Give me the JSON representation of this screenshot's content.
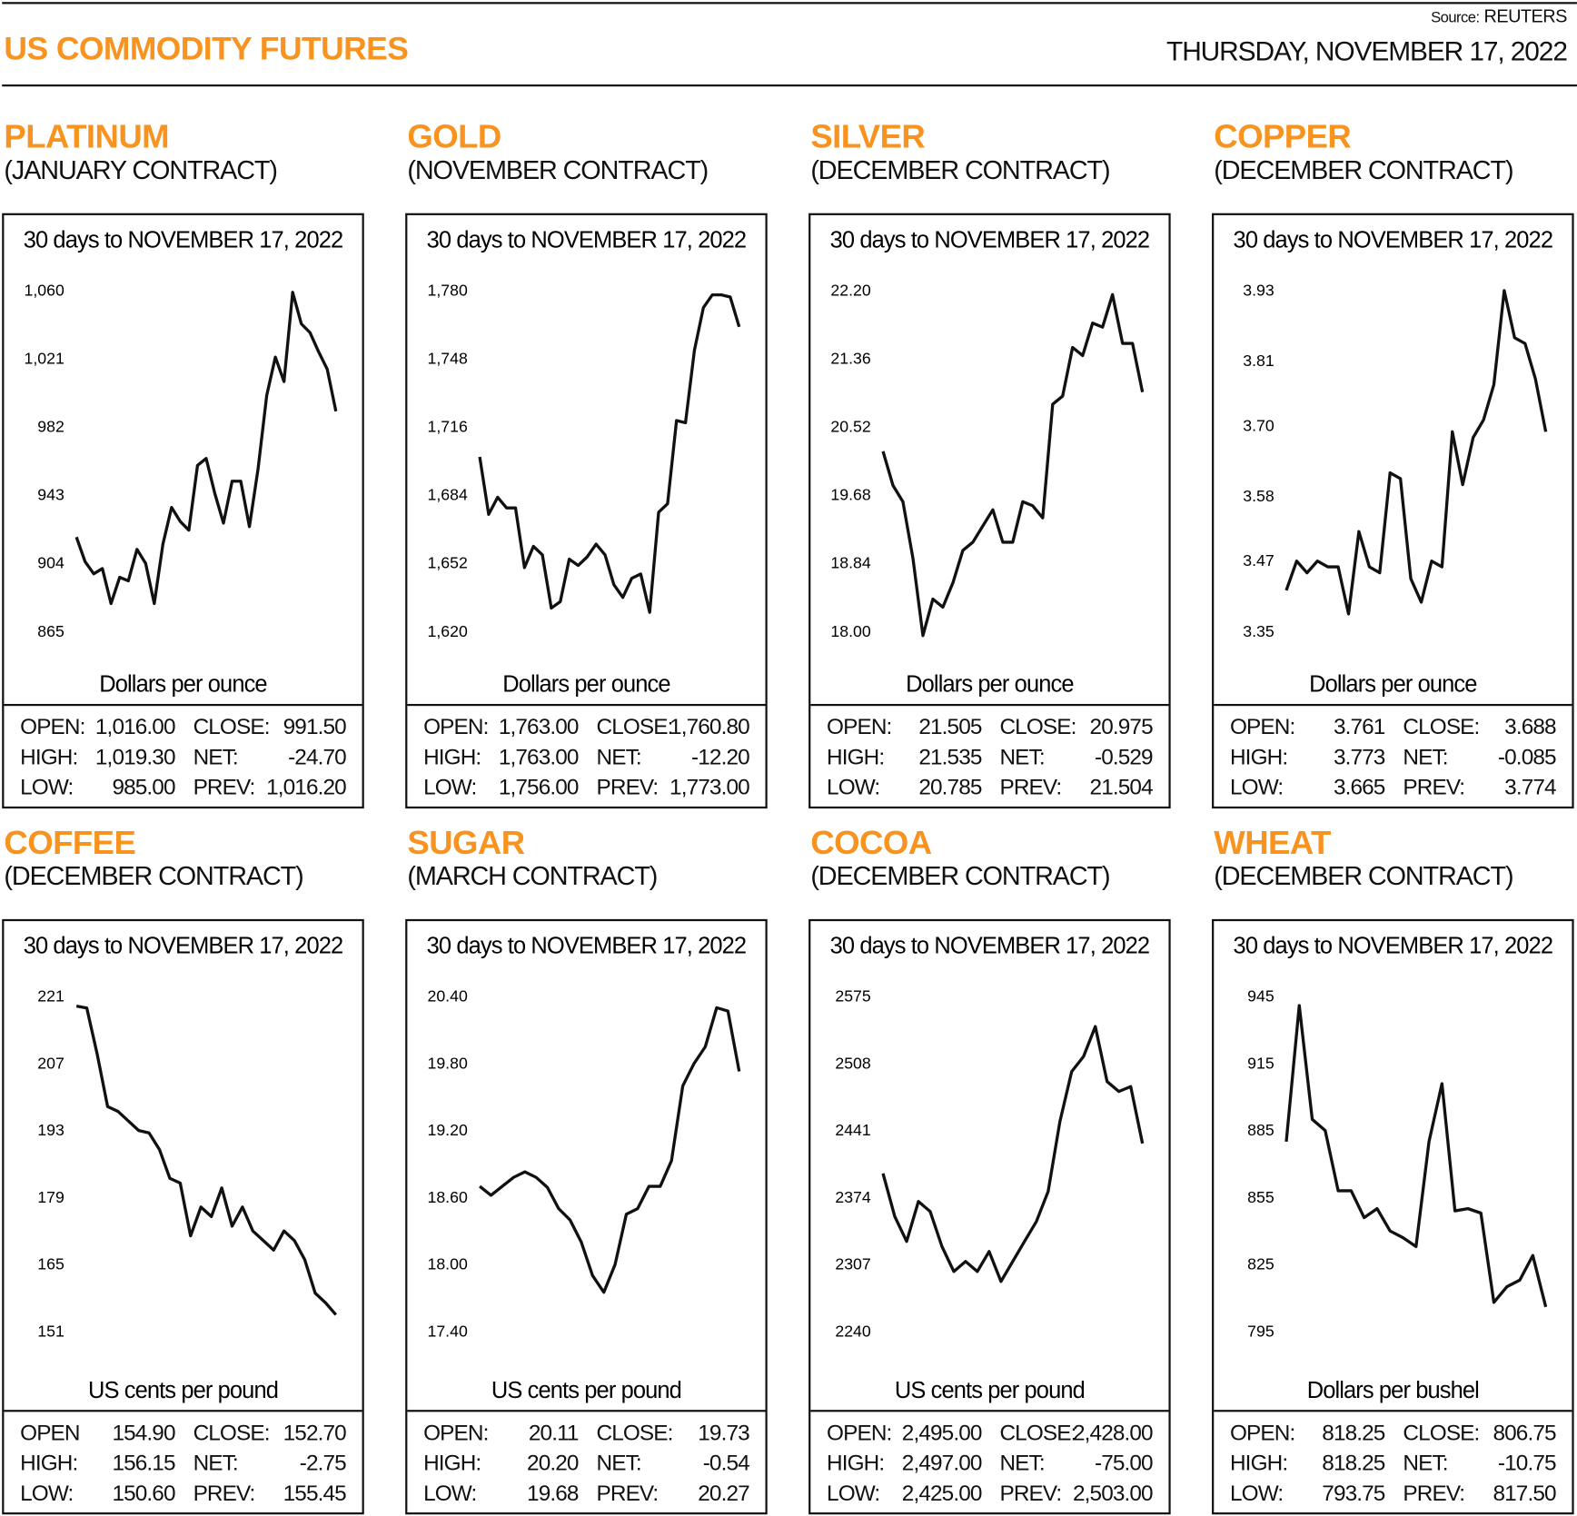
{
  "header": {
    "title": "US COMMODITY FUTURES",
    "source_prefix": "Source:",
    "source": "REUTERS",
    "date": "THURSDAY, NOVEMBER 17, 2022"
  },
  "colors": {
    "accent": "#f7931e",
    "line": "#111111"
  },
  "chart_data": [
    {
      "type": "line",
      "name": "PLATINUM",
      "contract": "(JANUARY CONTRACT)",
      "title": "30 days to NOVEMBER 17, 2022",
      "ylabel": "Dollars per ounce",
      "ylim": [
        865,
        1060
      ],
      "yticks": [
        "1,060",
        "1,021",
        "982",
        "943",
        "904",
        "865"
      ],
      "ytick_values": [
        1060,
        1021,
        982,
        943,
        904,
        865
      ],
      "values": [
        919,
        905,
        898,
        901,
        881,
        896,
        894,
        912,
        904,
        881,
        915,
        936,
        928,
        923,
        960,
        964,
        944,
        927,
        951,
        951,
        925,
        958,
        1000,
        1022,
        1008,
        1059,
        1041,
        1036,
        1025,
        1015,
        991
      ],
      "stats": [
        [
          "OPEN:",
          "1,016.00",
          "CLOSE:",
          "991.50"
        ],
        [
          "HIGH:",
          "1,019.30",
          "NET:",
          "-24.70"
        ],
        [
          "LOW:",
          "985.00",
          "PREV:",
          "1,016.20"
        ]
      ]
    },
    {
      "type": "line",
      "name": "GOLD",
      "contract": "(NOVEMBER CONTRACT)",
      "title": "30 days to NOVEMBER 17, 2022",
      "ylabel": "Dollars per ounce",
      "ylim": [
        1620,
        1780
      ],
      "yticks": [
        "1,780",
        "1,748",
        "1,716",
        "1,684",
        "1,652",
        "1,620"
      ],
      "ytick_values": [
        1780,
        1748,
        1716,
        1684,
        1652,
        1620
      ],
      "values": [
        1702,
        1675,
        1683,
        1678,
        1678,
        1650,
        1660,
        1656,
        1631,
        1634,
        1654,
        1651,
        1655,
        1661,
        1656,
        1642,
        1636,
        1645,
        1647,
        1629,
        1676,
        1680,
        1719,
        1718,
        1752,
        1772,
        1778,
        1778,
        1777,
        1763
      ],
      "stats": [
        [
          "OPEN:",
          "1,763.00",
          "CLOSE:",
          "1,760.80"
        ],
        [
          "HIGH:",
          "1,763.00",
          "NET:",
          "-12.20"
        ],
        [
          "LOW:",
          "1,756.00",
          "PREV:",
          "1,773.00"
        ]
      ]
    },
    {
      "type": "line",
      "name": "SILVER",
      "contract": "(DECEMBER CONTRACT)",
      "title": "30 days to NOVEMBER 17, 2022",
      "ylabel": "Dollars per ounce",
      "ylim": [
        18.0,
        22.2
      ],
      "yticks": [
        "22.20",
        "21.36",
        "20.52",
        "19.68",
        "18.84",
        "18.00"
      ],
      "ytick_values": [
        22.2,
        21.36,
        20.52,
        19.68,
        18.84,
        18.0
      ],
      "values": [
        20.22,
        19.8,
        19.6,
        18.9,
        17.95,
        18.4,
        18.3,
        18.6,
        19.0,
        19.1,
        19.3,
        19.5,
        19.1,
        19.1,
        19.6,
        19.55,
        19.4,
        20.8,
        20.9,
        21.5,
        21.4,
        21.8,
        21.75,
        22.15,
        21.55,
        21.55,
        20.95
      ],
      "stats": [
        [
          "OPEN:",
          "21.505",
          "CLOSE:",
          "20.975"
        ],
        [
          "HIGH:",
          "21.535",
          "NET:",
          "-0.529"
        ],
        [
          "LOW:",
          "20.785",
          "PREV:",
          "21.504"
        ]
      ]
    },
    {
      "type": "line",
      "name": "COPPER",
      "contract": "(DECEMBER CONTRACT)",
      "title": "30 days to NOVEMBER 17, 2022",
      "ylabel": "Dollars per ounce",
      "ylim": [
        3.35,
        3.93
      ],
      "yticks": [
        "3.93",
        "3.81",
        "3.70",
        "3.58",
        "3.47",
        "3.35"
      ],
      "ytick_values": [
        3.93,
        3.81,
        3.7,
        3.58,
        3.47,
        3.35
      ],
      "values": [
        3.42,
        3.47,
        3.45,
        3.47,
        3.46,
        3.46,
        3.38,
        3.52,
        3.46,
        3.45,
        3.62,
        3.61,
        3.44,
        3.4,
        3.47,
        3.46,
        3.69,
        3.6,
        3.68,
        3.71,
        3.77,
        3.93,
        3.85,
        3.84,
        3.78,
        3.69
      ],
      "stats": [
        [
          "OPEN:",
          "3.761",
          "CLOSE:",
          "3.688"
        ],
        [
          "HIGH:",
          "3.773",
          "NET:",
          "-0.085"
        ],
        [
          "LOW:",
          "3.665",
          "PREV:",
          "3.774"
        ]
      ]
    },
    {
      "type": "line",
      "name": "COFFEE",
      "contract": "(DECEMBER CONTRACT)",
      "title": "30 days to NOVEMBER 17, 2022",
      "ylabel": "US cents per pound",
      "ylim": [
        151,
        221
      ],
      "yticks": [
        "221",
        "207",
        "193",
        "179",
        "165",
        "151"
      ],
      "ytick_values": [
        221,
        207,
        193,
        179,
        165,
        151
      ],
      "values": [
        219,
        218.6,
        209,
        198,
        197,
        195,
        193,
        192.5,
        189,
        183,
        182,
        171,
        177,
        175,
        181,
        173,
        177,
        172,
        170,
        168,
        172,
        170,
        166,
        159,
        157,
        154.5
      ],
      "stats": [
        [
          "OPEN",
          "154.90",
          "CLOSE:",
          "152.70"
        ],
        [
          "HIGH:",
          "156.15",
          "NET:",
          "-2.75"
        ],
        [
          "LOW:",
          "150.60",
          "PREV:",
          "155.45"
        ]
      ]
    },
    {
      "type": "line",
      "name": "SUGAR",
      "contract": "(MARCH CONTRACT)",
      "title": "30 days to NOVEMBER 17, 2022",
      "ylabel": "US cents per pound",
      "ylim": [
        17.4,
        20.4
      ],
      "yticks": [
        "20.40",
        "19.80",
        "19.20",
        "18.60",
        "18.00",
        "17.40"
      ],
      "ytick_values": [
        20.4,
        19.8,
        19.2,
        18.6,
        18.0,
        17.4
      ],
      "values": [
        18.7,
        18.62,
        18.7,
        18.78,
        18.83,
        18.78,
        18.69,
        18.5,
        18.4,
        18.2,
        17.9,
        17.75,
        18.0,
        18.45,
        18.5,
        18.7,
        18.7,
        18.93,
        19.6,
        19.8,
        19.95,
        20.3,
        20.27,
        19.73
      ],
      "stats": [
        [
          "OPEN:",
          "20.11",
          "CLOSE:",
          "19.73"
        ],
        [
          "HIGH:",
          "20.20",
          "NET:",
          "-0.54"
        ],
        [
          "LOW:",
          "19.68",
          "PREV:",
          "20.27"
        ]
      ]
    },
    {
      "type": "line",
      "name": "COCOA",
      "contract": "(DECEMBER CONTRACT)",
      "title": "30 days to NOVEMBER 17, 2022",
      "ylabel": "US cents per pound",
      "ylim": [
        2240,
        2575
      ],
      "yticks": [
        "2575",
        "2508",
        "2441",
        "2374",
        "2307",
        "2240"
      ],
      "ytick_values": [
        2575,
        2508,
        2441,
        2374,
        2307,
        2240
      ],
      "values": [
        2398,
        2355,
        2330,
        2370,
        2360,
        2325,
        2300,
        2310,
        2300,
        2320,
        2290,
        2310,
        2330,
        2350,
        2380,
        2450,
        2500,
        2515,
        2545,
        2490,
        2480,
        2485,
        2428
      ],
      "stats": [
        [
          "OPEN:",
          "2,495.00",
          "CLOSE:",
          "2,428.00"
        ],
        [
          "HIGH:",
          "2,497.00",
          "NET:",
          "-75.00"
        ],
        [
          "LOW:",
          "2,425.00",
          "PREV:",
          "2,503.00"
        ]
      ]
    },
    {
      "type": "line",
      "name": "WHEAT",
      "contract": "(DECEMBER CONTRACT)",
      "title": "30 days to NOVEMBER 17, 2022",
      "ylabel": "Dollars per bushel",
      "ylim": [
        795,
        945
      ],
      "yticks": [
        "945",
        "915",
        "885",
        "855",
        "825",
        "795"
      ],
      "ytick_values": [
        945,
        915,
        885,
        855,
        825,
        795
      ],
      "values": [
        880,
        941,
        890,
        885,
        858,
        858,
        846,
        850,
        840,
        837,
        833,
        880,
        906,
        849,
        850,
        848,
        808,
        815,
        818,
        829,
        806
      ],
      "stats": [
        [
          "OPEN:",
          "818.25",
          "CLOSE:",
          "806.75"
        ],
        [
          "HIGH:",
          "818.25",
          "NET:",
          "-10.75"
        ],
        [
          "LOW:",
          "793.75",
          "PREV:",
          "817.50"
        ]
      ]
    }
  ]
}
